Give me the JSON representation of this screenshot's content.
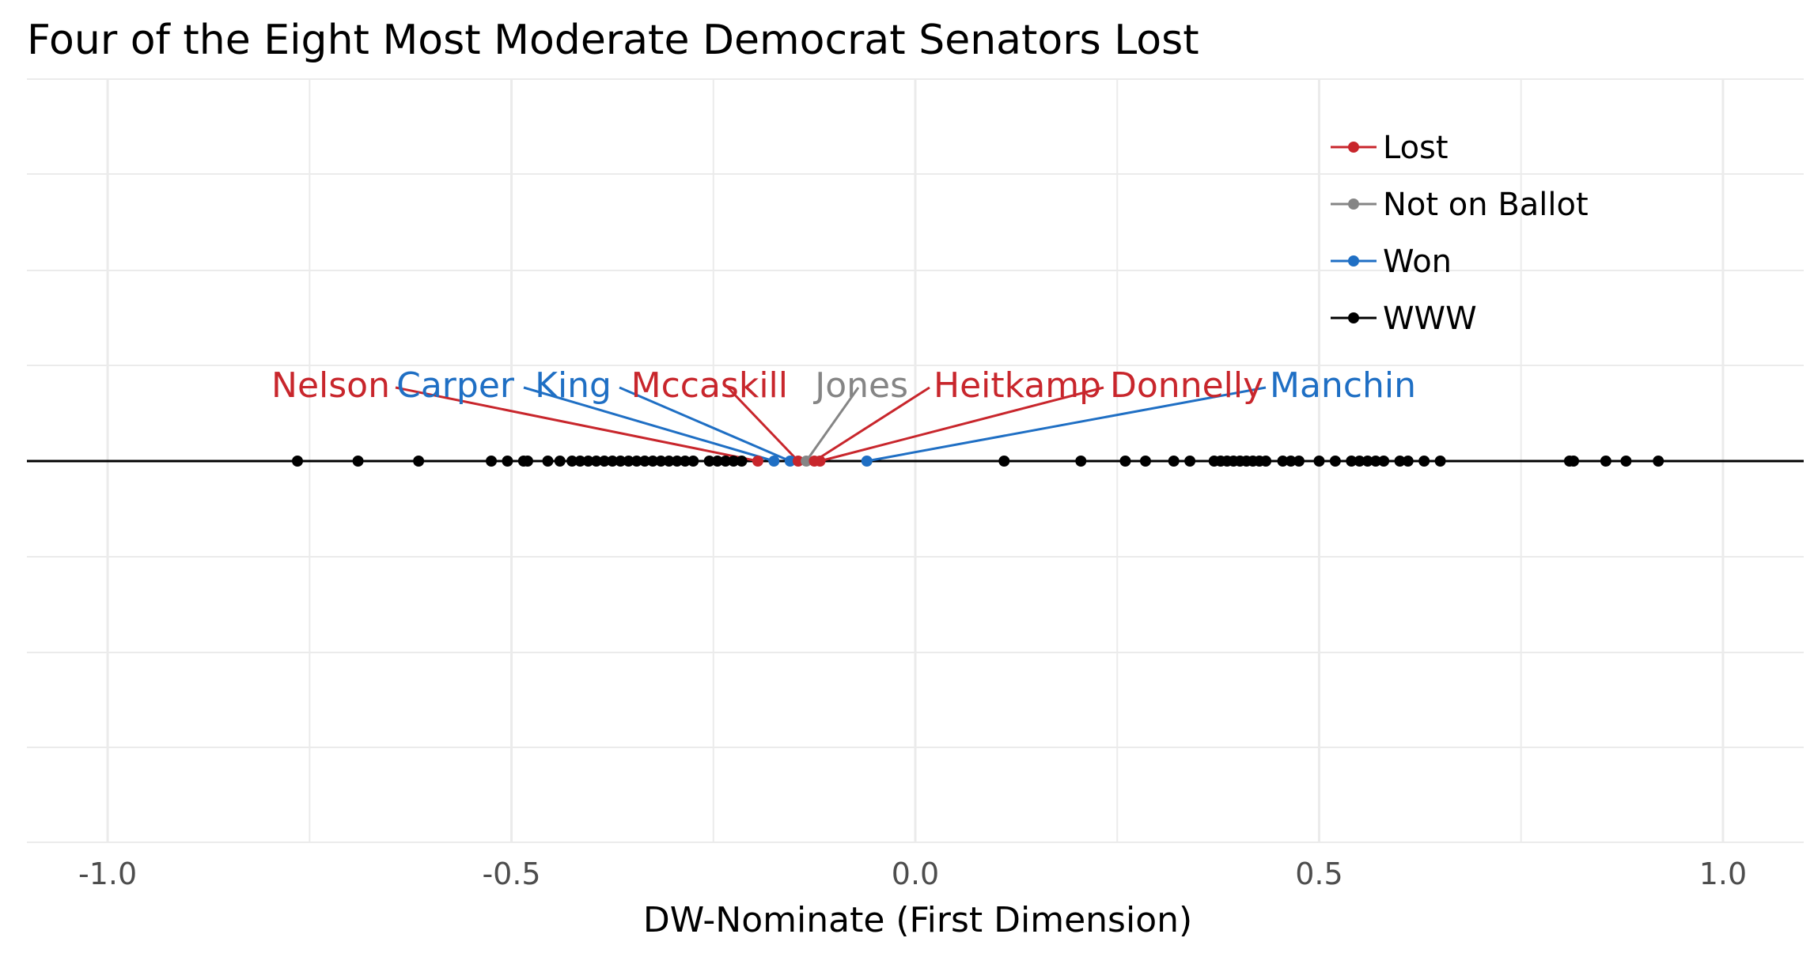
{
  "chart_data": {
    "type": "scatter",
    "title": "Four of the Eight Most Moderate Democrat Senators Lost",
    "xlabel": "DW-Nominate (First Dimension)",
    "xlim": [
      -1.1,
      1.1
    ],
    "x_ticks": [
      -1.0,
      -0.5,
      0.0,
      0.5,
      1.0
    ],
    "x_tick_labels": [
      "-1.0",
      "-0.5",
      "0.0",
      "0.5",
      "1.0"
    ],
    "grid": true,
    "legend_position": "top-right",
    "colors": {
      "Lost": "#c8262c",
      "Not on Ballot": "#858585",
      "Won": "#1f6fc4",
      "WWW": "#000000",
      "grid": "#ebebeb",
      "axis_line": "#000000"
    },
    "legend": [
      "Lost",
      "Not on Ballot",
      "Won",
      "WWW"
    ],
    "highlighted": [
      {
        "name": "Nelson",
        "x": -0.195,
        "status": "Lost"
      },
      {
        "name": "Carper",
        "x": -0.175,
        "status": "Won"
      },
      {
        "name": "King",
        "x": -0.155,
        "status": "Won"
      },
      {
        "name": "Mccaskill",
        "x": -0.145,
        "status": "Lost"
      },
      {
        "name": "Jones",
        "x": -0.135,
        "status": "Not on Ballot"
      },
      {
        "name": "Heitkamp",
        "x": -0.125,
        "status": "Lost"
      },
      {
        "name": "Donnelly",
        "x": -0.118,
        "status": "Lost"
      },
      {
        "name": "Manchin",
        "x": -0.06,
        "status": "Won"
      }
    ],
    "others": {
      "status": "WWW",
      "x": [
        -0.765,
        -0.69,
        -0.615,
        -0.525,
        -0.505,
        -0.485,
        -0.48,
        -0.455,
        -0.44,
        -0.425,
        -0.415,
        -0.405,
        -0.395,
        -0.385,
        -0.375,
        -0.365,
        -0.355,
        -0.345,
        -0.335,
        -0.325,
        -0.315,
        -0.305,
        -0.295,
        -0.285,
        -0.275,
        -0.255,
        -0.245,
        -0.235,
        -0.225,
        -0.215,
        0.11,
        0.205,
        0.26,
        0.285,
        0.32,
        0.34,
        0.37,
        0.378,
        0.386,
        0.394,
        0.402,
        0.41,
        0.418,
        0.426,
        0.434,
        0.455,
        0.465,
        0.475,
        0.5,
        0.52,
        0.54,
        0.55,
        0.56,
        0.57,
        0.58,
        0.6,
        0.61,
        0.63,
        0.65,
        0.81,
        0.815,
        0.855,
        0.88,
        0.92
      ]
    }
  }
}
